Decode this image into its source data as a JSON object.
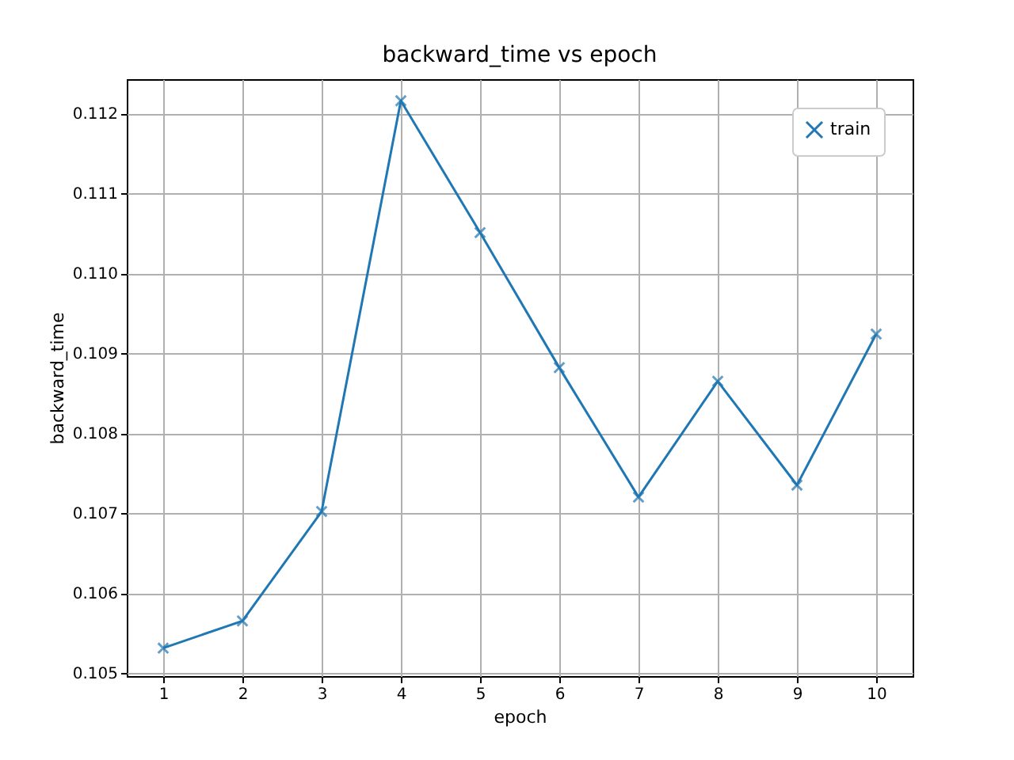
{
  "chart_data": {
    "type": "line",
    "title": "backward_time vs epoch",
    "xlabel": "epoch",
    "ylabel": "backward_time",
    "x": [
      1,
      2,
      3,
      4,
      5,
      6,
      7,
      8,
      9,
      10
    ],
    "series": [
      {
        "name": "train",
        "color": "#1f77b4",
        "values": [
          0.10531,
          0.10565,
          0.10702,
          0.11216,
          0.11051,
          0.10882,
          0.1072,
          0.10865,
          0.10735,
          0.10924
        ]
      }
    ],
    "xlim": [
      0.54,
      10.46
    ],
    "xticks": [
      1,
      2,
      3,
      4,
      5,
      6,
      7,
      8,
      9,
      10
    ],
    "ylim": [
      0.10496,
      0.11243
    ],
    "yticks": [
      0.105,
      0.106,
      0.107,
      0.108,
      0.109,
      {
        "value": 0.11,
        "label": "0.110"
      },
      0.111,
      0.112
    ],
    "grid": true,
    "legend": "top right",
    "marker": "cross",
    "line_style": "solid"
  }
}
